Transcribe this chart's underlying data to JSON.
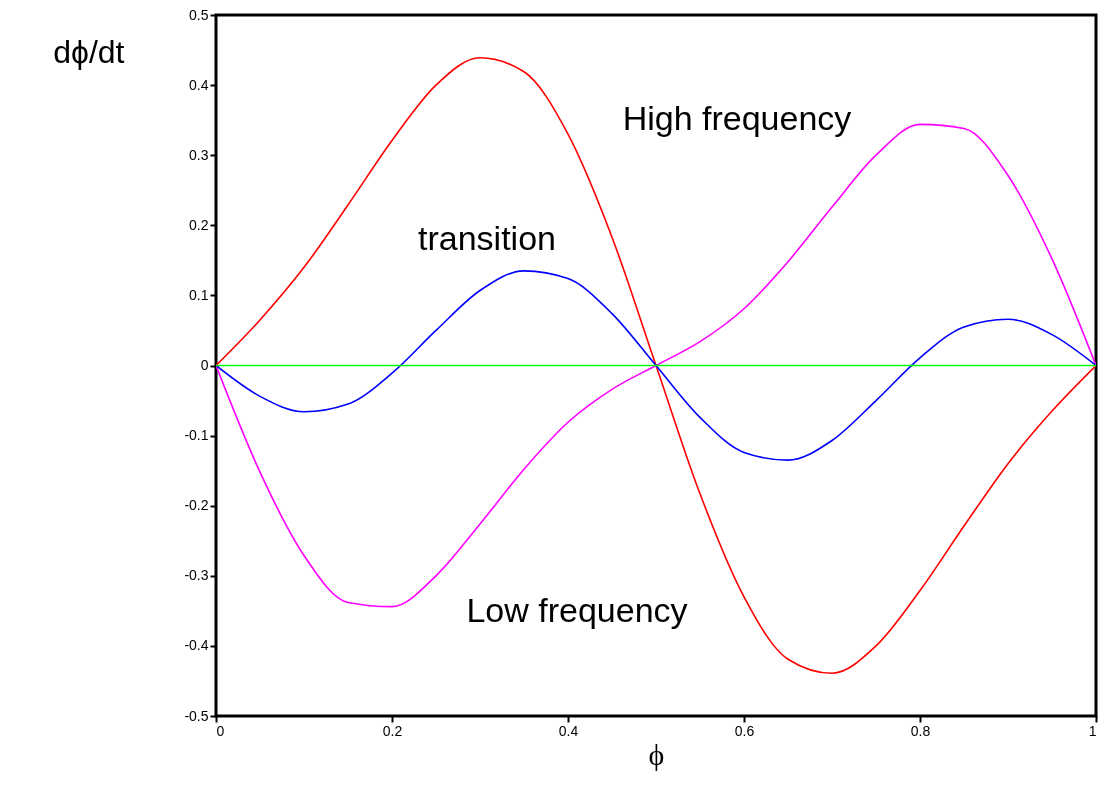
{
  "chart_data": {
    "type": "line",
    "xlabel": "ϕ",
    "ylabel": "dϕ/dt",
    "xlim": [
      0,
      1
    ],
    "ylim": [
      -0.5,
      0.5
    ],
    "xticks": [
      0,
      0.2,
      0.4,
      0.6,
      0.8,
      1
    ],
    "yticks": [
      -0.5,
      -0.4,
      -0.3,
      -0.2,
      -0.1,
      0,
      0.1,
      0.2,
      0.3,
      0.4,
      0.5
    ],
    "grid": false,
    "marker": "none",
    "line_style": "solid",
    "x": [
      0,
      0.05,
      0.1,
      0.15,
      0.2,
      0.25,
      0.3,
      0.35,
      0.4,
      0.45,
      0.5,
      0.55,
      0.6,
      0.65,
      0.7,
      0.75,
      0.8,
      0.85,
      0.9,
      0.95,
      1
    ],
    "series": [
      {
        "color": "#ff0000",
        "values": [
          0,
          0.065,
          0.14,
          0.229,
          0.321,
          0.4,
          0.439,
          0.419,
          0.33,
          0.183,
          0,
          -0.183,
          -0.33,
          -0.419,
          -0.439,
          -0.4,
          -0.321,
          -0.229,
          -0.14,
          -0.065,
          0
        ]
      },
      {
        "color": "#ff00ff",
        "values": [
          0,
          -0.152,
          -0.271,
          -0.338,
          -0.344,
          -0.3,
          -0.226,
          -0.148,
          -0.081,
          -0.034,
          0,
          0.034,
          0.081,
          0.148,
          0.226,
          0.3,
          0.344,
          0.338,
          0.271,
          0.152,
          0
        ]
      },
      {
        "color": "#0000ff",
        "values": [
          0,
          -0.044,
          -0.066,
          -0.055,
          -0.011,
          0.05,
          0.107,
          0.135,
          0.124,
          0.074,
          0,
          -0.074,
          -0.124,
          -0.135,
          -0.107,
          -0.05,
          0.011,
          0.055,
          0.066,
          0.044,
          0
        ]
      },
      {
        "color": "#00ff00",
        "x": [
          0,
          1
        ],
        "values": [
          0,
          0
        ]
      }
    ],
    "annotations": [
      "High frequency",
      "transition",
      "Low frequency"
    ]
  }
}
